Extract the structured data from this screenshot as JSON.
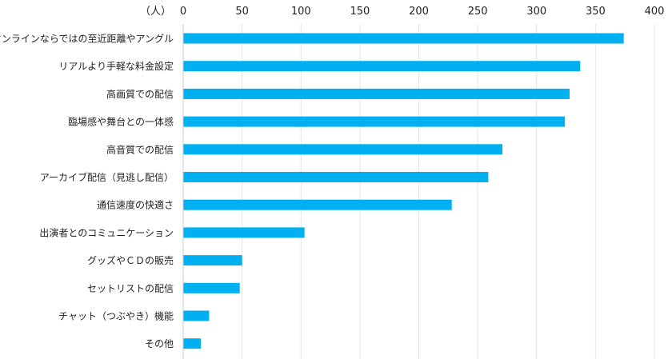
{
  "chart_data": {
    "type": "bar",
    "orientation": "horizontal",
    "unit_label": "（人）",
    "title": "",
    "xlabel": "",
    "ylabel": "",
    "xlim": [
      0,
      400
    ],
    "x_ticks": [
      0,
      50,
      100,
      150,
      200,
      250,
      300,
      350,
      400
    ],
    "x_tick_labels": [
      "0",
      "50",
      "100",
      "150",
      "200",
      "250",
      "300",
      "350",
      "400"
    ],
    "grid": true,
    "bar_color": "#00b0f0",
    "categories": [
      "オンラインならではの至近距離やアングル",
      "リアルより手軽な料金設定",
      "高画質での配信",
      "臨場感や舞台との一体感",
      "高音質での配信",
      "アーカイブ配信（見逃し配信）",
      "通信速度の快適さ",
      "出演者とのコミュニケーション",
      "グッズやＣＤの販売",
      "セットリストの配信",
      "チャット（つぶやき）機能",
      "その他"
    ],
    "values": [
      374,
      337,
      328,
      324,
      271,
      259,
      228,
      103,
      50,
      48,
      22,
      15
    ]
  }
}
